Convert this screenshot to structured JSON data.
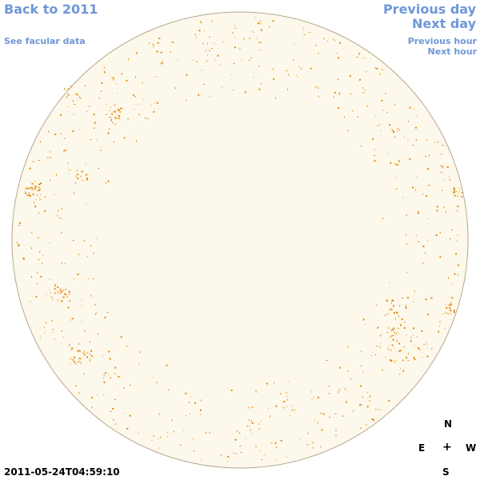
{
  "nav": {
    "back": "Back to 2011",
    "facular": "See facular data",
    "prev_day": "Previous day",
    "next_day": "Next day",
    "prev_hour": "Previous hour",
    "next_hour": "Next hour"
  },
  "timestamp": "2011-05-24T04:59:10",
  "compass": {
    "n": "N",
    "e": "E",
    "center": "+",
    "w": "W",
    "s": "S"
  },
  "colors": {
    "link": "#6f97d8",
    "disk_fill": "#fdf8ec",
    "disk_edge": "#b5a88f",
    "spot": "#e38a0b"
  }
}
